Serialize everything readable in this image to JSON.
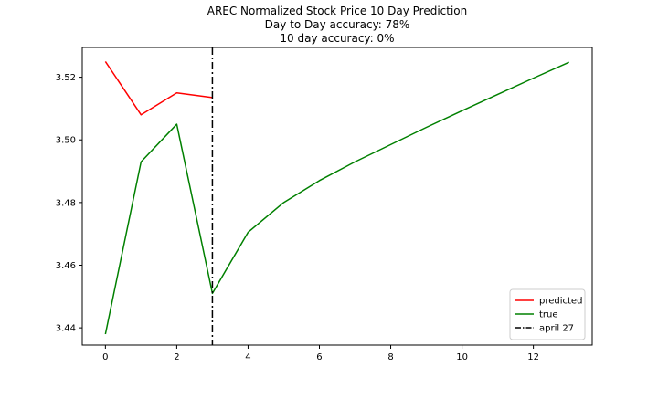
{
  "chart_data": {
    "type": "line",
    "title": [
      "AREC Normalized Stock Price 10 Day Prediction",
      "Day to Day accuracy: 78%",
      "10 day accuracy: 0%"
    ],
    "xlabel": "",
    "ylabel": "",
    "xlim": [
      -0.65,
      13.65
    ],
    "ylim": [
      3.4345,
      3.5295
    ],
    "x_ticks": [
      0,
      2,
      4,
      6,
      8,
      10,
      12
    ],
    "y_ticks": [
      3.44,
      3.46,
      3.48,
      3.5,
      3.52
    ],
    "y_tick_labels": [
      "3.44",
      "3.46",
      "3.48",
      "3.50",
      "3.52"
    ],
    "grid": false,
    "legend_position": "lower-right",
    "series": [
      {
        "name": "predicted",
        "color": "#ff0000",
        "style": "solid",
        "x": [
          0,
          1,
          2,
          3
        ],
        "y": [
          3.525,
          3.508,
          3.515,
          3.5135
        ]
      },
      {
        "name": "true",
        "color": "#008000",
        "style": "solid",
        "x": [
          0,
          1,
          2,
          3,
          4,
          5,
          6,
          7,
          8,
          9,
          10,
          11,
          12,
          13
        ],
        "y": [
          3.438,
          3.493,
          3.505,
          3.451,
          3.4705,
          3.48,
          3.487,
          3.493,
          3.4985,
          3.504,
          3.5093,
          3.5145,
          3.5197,
          3.5248
        ]
      }
    ],
    "vlines": [
      {
        "name": "april 27",
        "x": 3,
        "color": "#000000",
        "style": "dashdot"
      }
    ]
  }
}
